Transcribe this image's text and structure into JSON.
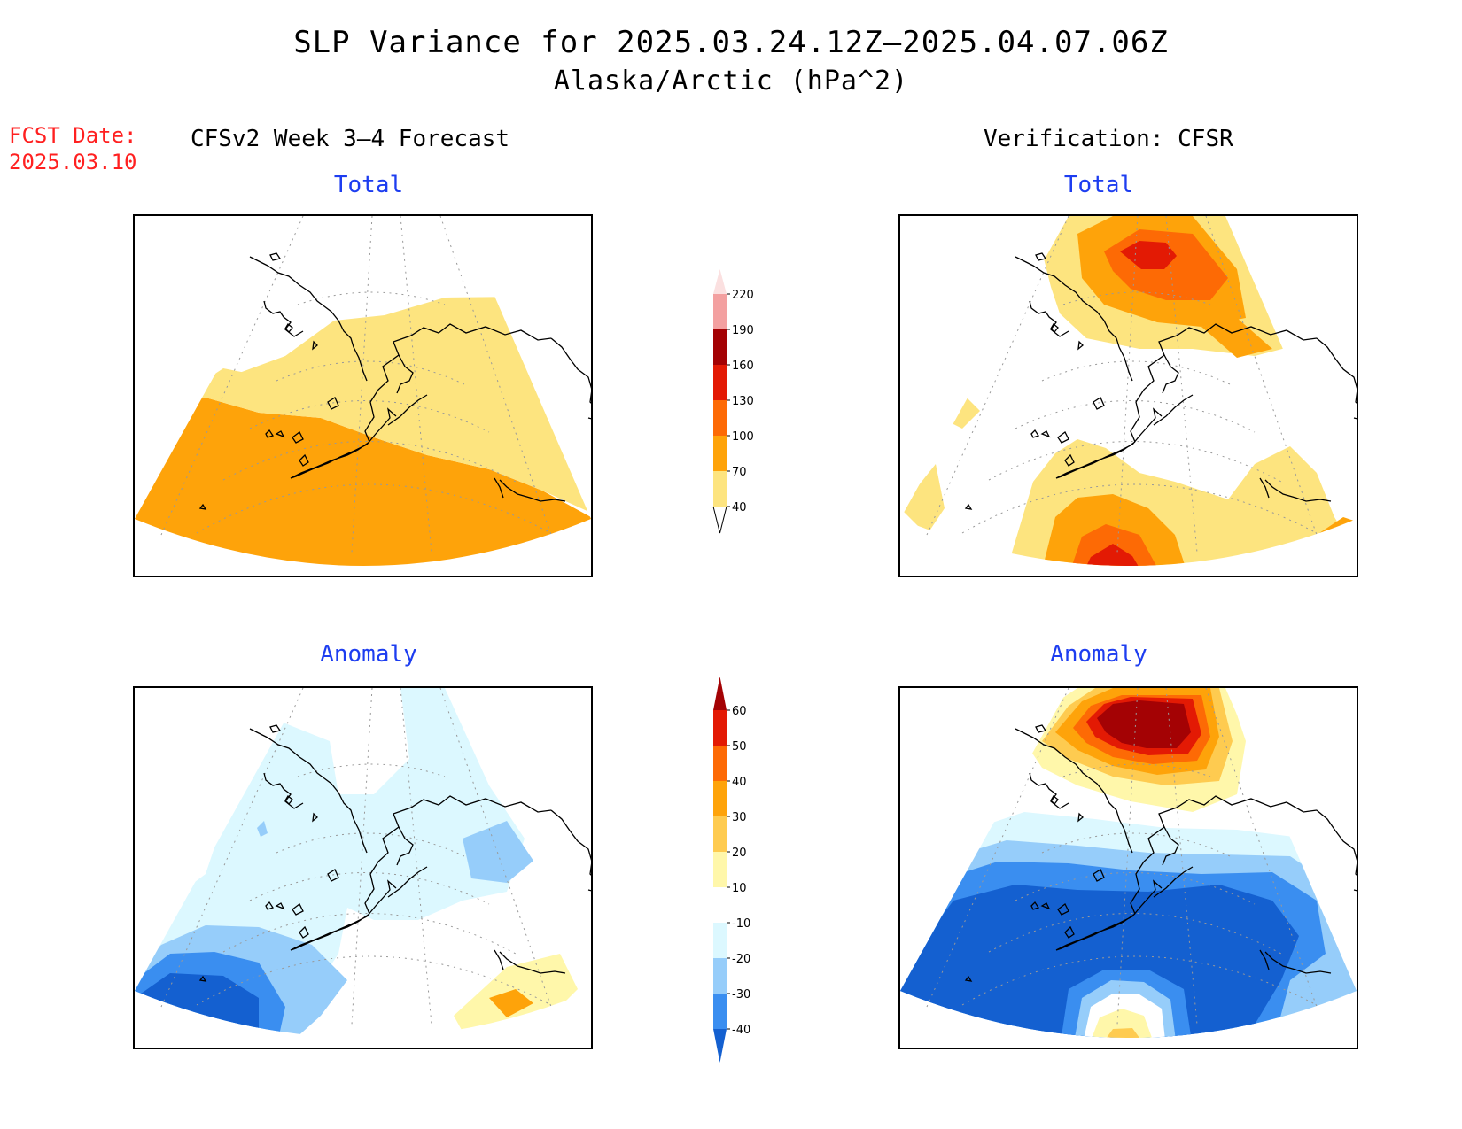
{
  "title": "SLP Variance for 2025.03.24.12Z–2025.04.07.06Z",
  "subtitle": "Alaska/Arctic (hPa^2)",
  "fcst_label": "FCST Date:",
  "fcst_date": "2025.03.10",
  "left_column": "CFSv2 Week 3–4 Forecast",
  "right_column": "Verification: CFSR",
  "panels": {
    "top_left_title": "Total",
    "top_right_title": "Total",
    "bottom_left_title": "Anomaly",
    "bottom_right_title": "Anomaly"
  },
  "total_colorbar": {
    "levels": [
      "40",
      "70",
      "100",
      "130",
      "160",
      "190",
      "220"
    ],
    "colors": [
      "#fde47f",
      "#fea30a",
      "#fd6a05",
      "#e31a04",
      "#a40204",
      "#f3a0a0",
      "#fbe0e0"
    ]
  },
  "anomaly_colorbar": {
    "levels": [
      "-40",
      "-30",
      "-20",
      "-10",
      "10",
      "20",
      "30",
      "40",
      "50",
      "60"
    ],
    "colors": [
      "#1460d0",
      "#3a8ef0",
      "#96cdfa",
      "#dcf8ff",
      "#ffffff",
      "#fff7aa",
      "#fecb50",
      "#fea30a",
      "#fd6a05",
      "#e31a04",
      "#a40204"
    ]
  },
  "chart_data": [
    {
      "type": "heatmap",
      "title": "Total",
      "source": "CFSv2 Week 3–4 Forecast",
      "range": [
        40,
        100
      ],
      "regions": [
        {
          "area": "northern Alaska / Arctic",
          "value_range": [
            40,
            70
          ]
        },
        {
          "area": "Bering Sea / Gulf of Alaska",
          "value_range": [
            70,
            100
          ]
        }
      ]
    },
    {
      "type": "heatmap",
      "title": "Total",
      "source": "Verification: CFSR",
      "regions": [
        {
          "area": "Arctic Ocean north of Alaska",
          "value_range": [
            130,
            160
          ]
        },
        {
          "area": "North Pacific south of Alaska",
          "value_range": [
            130,
            160
          ]
        },
        {
          "area": "interior Alaska",
          "value_range": [
            0,
            40
          ]
        }
      ]
    },
    {
      "type": "heatmap",
      "title": "Anomaly",
      "source": "CFSv2 Week 3–4 Forecast",
      "regions": [
        {
          "area": "most of domain",
          "value_range": [
            -20,
            -10
          ]
        },
        {
          "area": "western Bering Sea",
          "value_range": [
            -40,
            -30
          ]
        },
        {
          "area": "southeast Gulf of Alaska",
          "value_range": [
            10,
            30
          ]
        }
      ]
    },
    {
      "type": "heatmap",
      "title": "Anomaly",
      "source": "Verification: CFSR",
      "regions": [
        {
          "area": "Arctic Ocean north of Alaska",
          "value_range": [
            60,
            70
          ]
        },
        {
          "area": "Alaska and North Pacific",
          "value_range": [
            -40,
            -30
          ]
        },
        {
          "area": "south Pacific edge",
          "value_range": [
            20,
            40
          ]
        }
      ]
    }
  ]
}
